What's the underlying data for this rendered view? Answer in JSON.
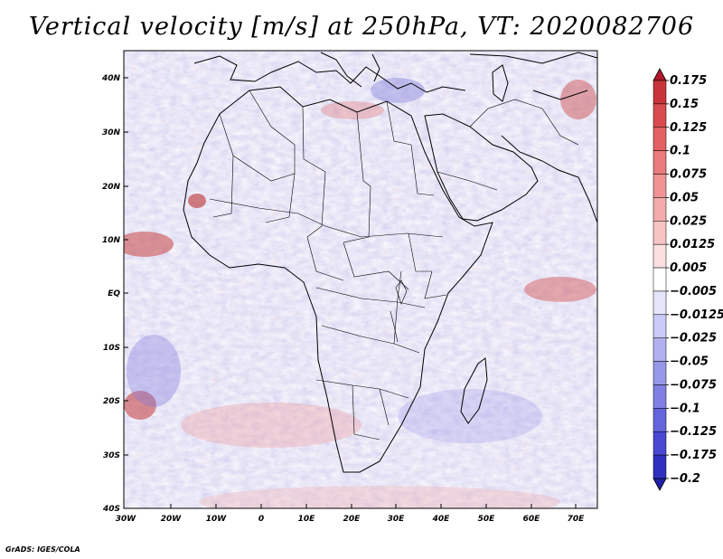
{
  "title": "Vertical velocity [m/s] at 250hPa, VT: 2020082706",
  "credit": "GrADS: IGES/COLA",
  "lat_ticks": [
    "40N",
    "30N",
    "20N",
    "10N",
    "EQ",
    "10S",
    "20S",
    "30S",
    "40S"
  ],
  "lon_ticks": [
    "30W",
    "20W",
    "10W",
    "0",
    "10E",
    "20E",
    "30E",
    "40E",
    "50E",
    "60E",
    "70E"
  ],
  "colorbar": {
    "labels": [
      "0.175",
      "0.15",
      "0.125",
      "0.1",
      "0.075",
      "0.05",
      "0.025",
      "0.0125",
      "0.005",
      "−0.005",
      "−0.0125",
      "−0.025",
      "−0.05",
      "−0.075",
      "−0.1",
      "−0.125",
      "−0.175",
      "−0.2"
    ],
    "colors": [
      "#b2182b",
      "#c9343a",
      "#d94b4e",
      "#e36163",
      "#ea7a7b",
      "#ef9393",
      "#f3abab",
      "#f7c4c4",
      "#fbe0e0",
      "#ffffff",
      "#e4e4fb",
      "#cacaf6",
      "#b1b1f0",
      "#9898ea",
      "#7f7fe4",
      "#6464dc",
      "#4848d2",
      "#3030c0",
      "#2020a8"
    ]
  },
  "field_colors": {
    "background": "#d7d4f0",
    "ascent": "#ec8a8a",
    "descent": "#8e8ae6",
    "light": "#ffffff",
    "coast": "#000000"
  }
}
